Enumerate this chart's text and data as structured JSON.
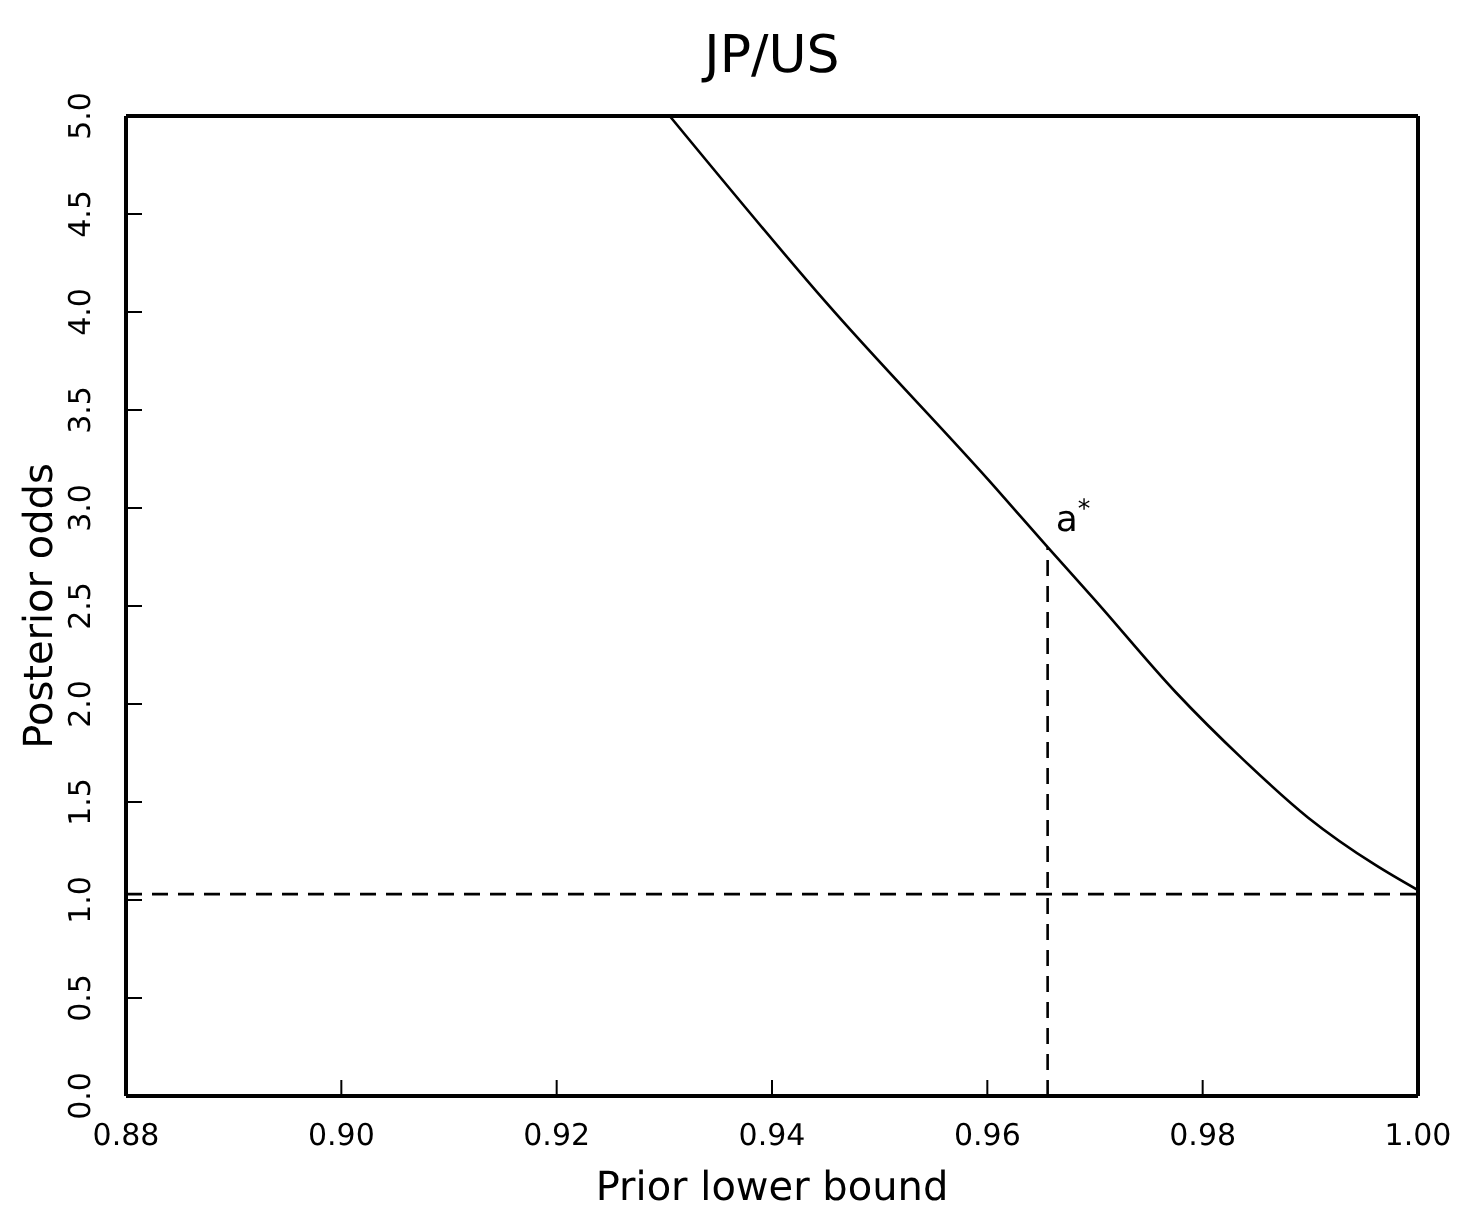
{
  "chart_data": {
    "type": "line",
    "title": "JP/US",
    "xlabel": "Prior lower bound",
    "ylabel": "Posterior odds",
    "xlim": [
      0.88,
      1.0
    ],
    "ylim": [
      0,
      5
    ],
    "xticks": [
      {
        "value": 0.88,
        "label": "0.88"
      },
      {
        "value": 0.9,
        "label": "0.90"
      },
      {
        "value": 0.92,
        "label": "0.92"
      },
      {
        "value": 0.94,
        "label": "0.94"
      },
      {
        "value": 0.96,
        "label": "0.96"
      },
      {
        "value": 0.98,
        "label": "0.98"
      },
      {
        "value": 1.0,
        "label": "1.00"
      }
    ],
    "yticks": [
      {
        "value": 0,
        "label": "0.0"
      },
      {
        "value": 0.5,
        "label": "0.5"
      },
      {
        "value": 1,
        "label": "1.0"
      },
      {
        "value": 1.5,
        "label": "1.5"
      },
      {
        "value": 2,
        "label": "2.0"
      },
      {
        "value": 2.5,
        "label": "2.5"
      },
      {
        "value": 3,
        "label": "3.0"
      },
      {
        "value": 3.5,
        "label": "3.5"
      },
      {
        "value": 4,
        "label": "4.0"
      },
      {
        "value": 4.5,
        "label": "4.5"
      },
      {
        "value": 5,
        "label": "5.0"
      }
    ],
    "series": [
      {
        "color": "#000000",
        "line_style": "solid",
        "x": [
          0.9305,
          0.945,
          0.9608,
          0.9656,
          0.97,
          0.9775,
          0.9837,
          0.9898,
          0.996,
          1.0
        ],
        "values": [
          5,
          4.05,
          3.1,
          2.8,
          2.53,
          2.06,
          1.72,
          1.42,
          1.18,
          1.05
        ]
      },
      {
        "color": "#000000",
        "line_style": "dashed",
        "x": [
          0.9656,
          0.9656
        ],
        "values": [
          0,
          2.8
        ]
      }
    ],
    "ref_lines": [
      {
        "axis": "y",
        "value": 1.03,
        "line_style": "dashed",
        "color": "#000000"
      }
    ],
    "annotations": [
      {
        "text": "a$^{*}$",
        "x": 0.9656,
        "y": 2.8
      }
    ],
    "grid": false,
    "marker": "none"
  }
}
